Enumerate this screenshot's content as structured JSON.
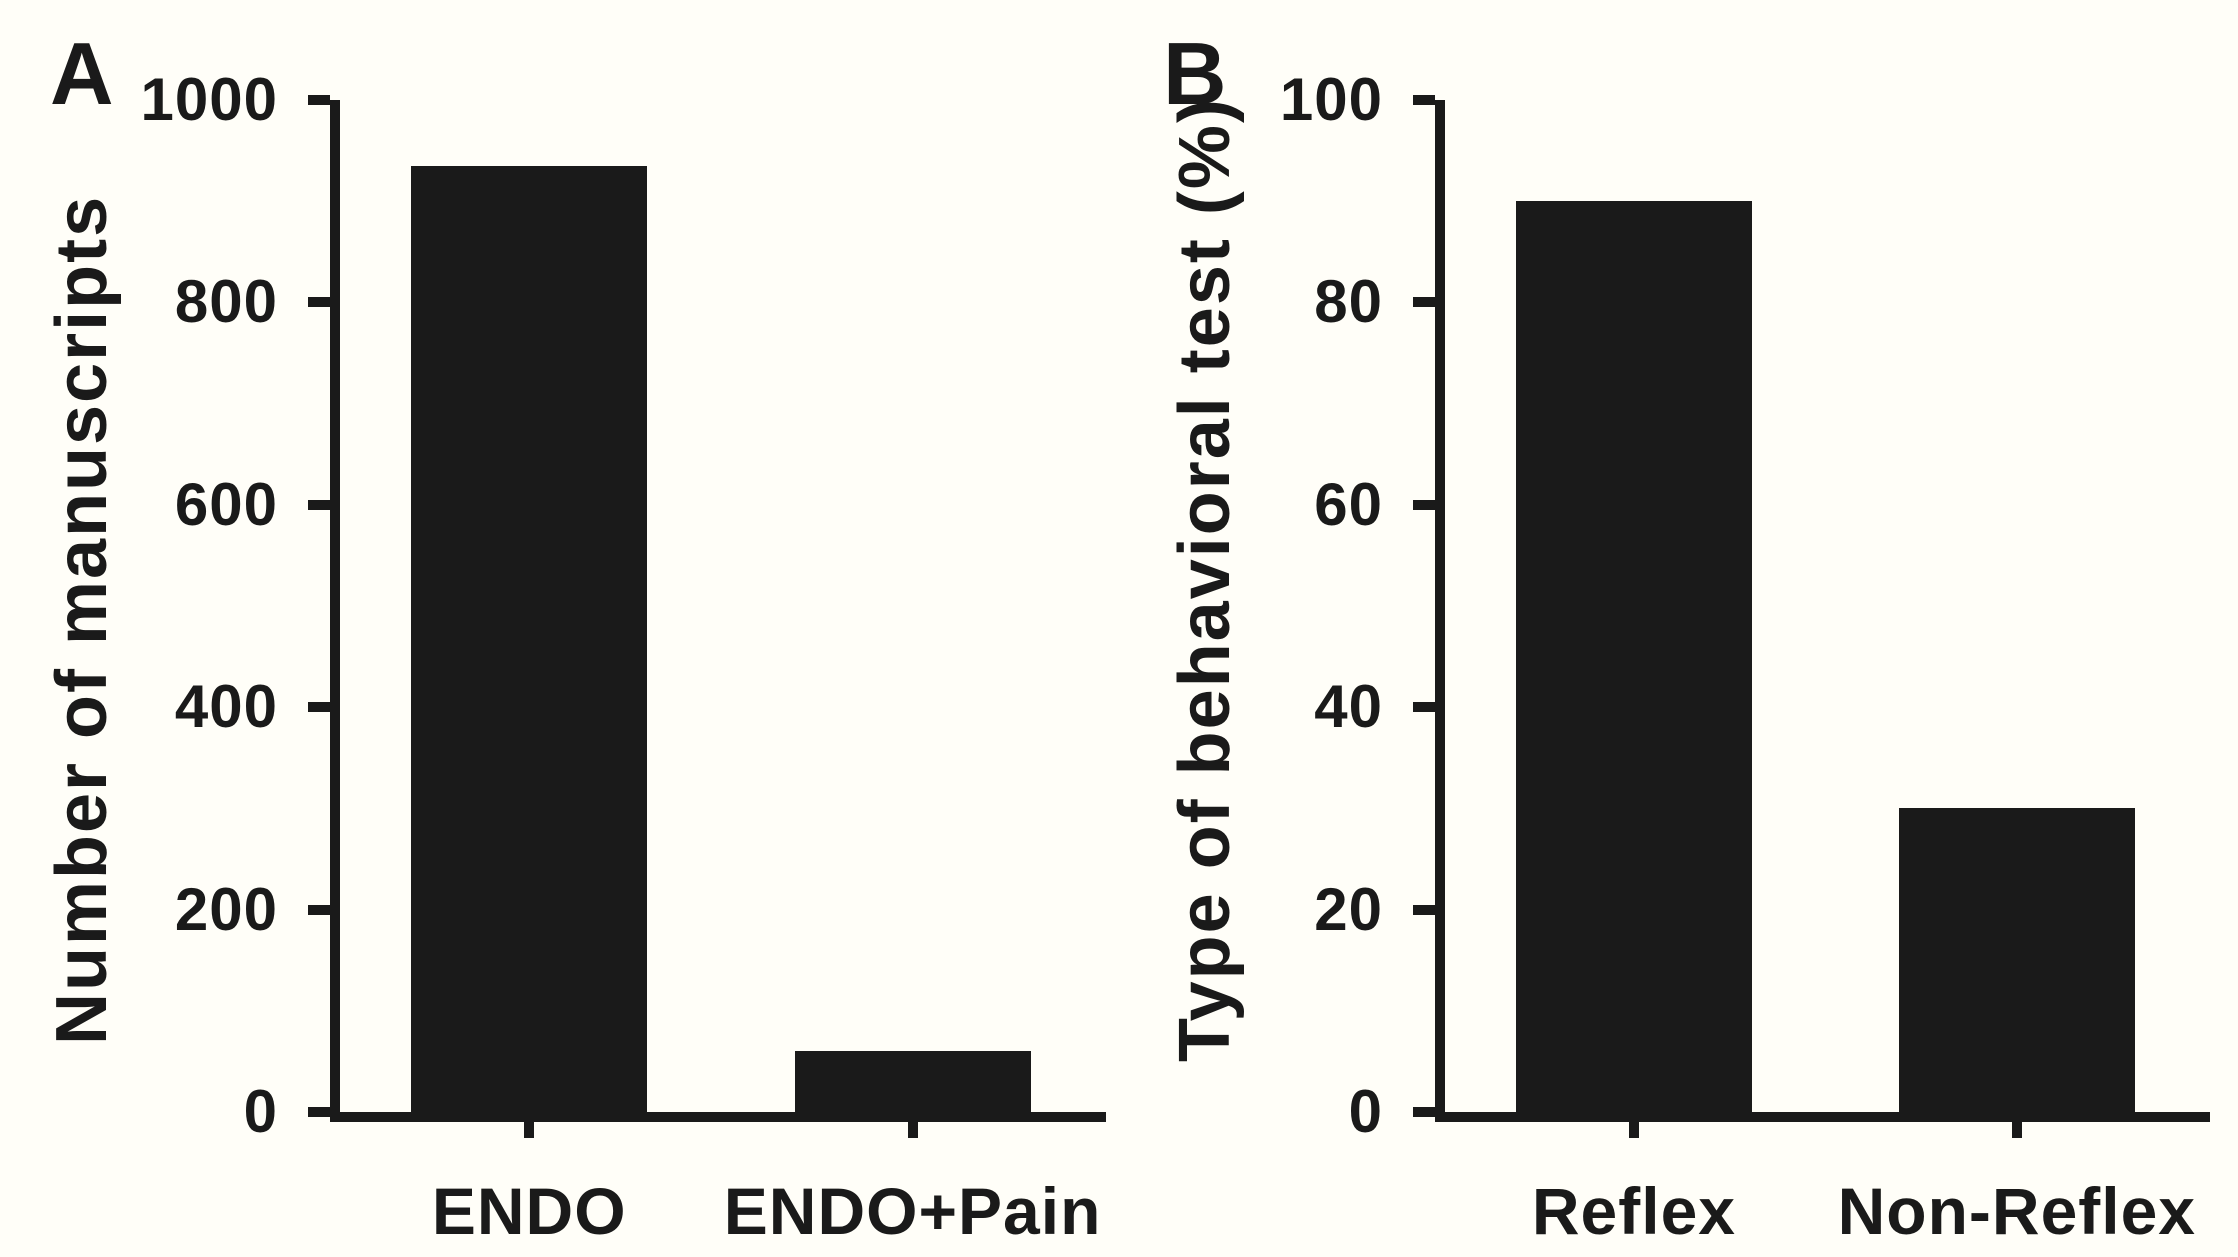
{
  "figure": {
    "background": "#FFFEF8",
    "ink": "#1A1A1A",
    "bar_color": "#1A1A1A"
  },
  "chart_data": [
    {
      "type": "bar",
      "panel_label": "A",
      "title": "",
      "xlabel": "",
      "ylabel": "Number of manuscripts",
      "categories": [
        "ENDO",
        "ENDO+Pain"
      ],
      "values": [
        935,
        60
      ],
      "yticks": [
        0,
        200,
        400,
        600,
        800,
        1000
      ],
      "ylim": [
        0,
        1000
      ],
      "grid": false,
      "legend": "none",
      "bar_color": "#1A1A1A"
    },
    {
      "type": "bar",
      "panel_label": "B",
      "title": "",
      "xlabel": "",
      "ylabel": "Type of behavioral test (%)",
      "categories": [
        "Reflex",
        "Non-Reflex"
      ],
      "values": [
        90,
        30
      ],
      "yticks": [
        0,
        20,
        40,
        60,
        80,
        100
      ],
      "ylim": [
        0,
        100
      ],
      "grid": false,
      "legend": "none",
      "bar_color": "#1A1A1A"
    }
  ]
}
